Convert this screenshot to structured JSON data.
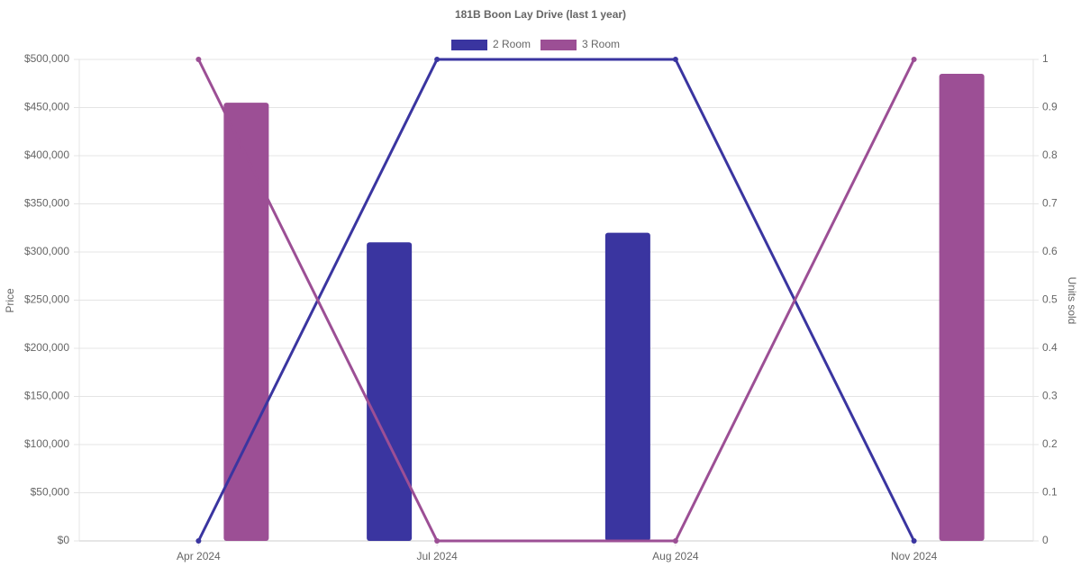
{
  "chart_data": {
    "type": "bar",
    "title": "181B Boon Lay Drive (last 1 year)",
    "categories": [
      "Apr 2024",
      "Jul 2024",
      "Aug 2024",
      "Nov 2024"
    ],
    "series": [
      {
        "name": "2 Room",
        "color": "#3a35a0",
        "values": [
          null,
          310000,
          320000,
          null
        ],
        "units_sold": [
          0,
          1,
          1,
          0
        ]
      },
      {
        "name": "3 Room",
        "color": "#9c4f95",
        "values": [
          455000,
          null,
          null,
          485000
        ],
        "units_sold": [
          1,
          0,
          0,
          1
        ]
      }
    ],
    "ylabel": "Price",
    "y2label": "Units sold",
    "ylim": [
      0,
      500000
    ],
    "yticks": [
      {
        "value": 0,
        "label": "$0"
      },
      {
        "value": 50000,
        "label": "$50,000"
      },
      {
        "value": 100000,
        "label": "$100,000"
      },
      {
        "value": 150000,
        "label": "$150,000"
      },
      {
        "value": 200000,
        "label": "$200,000"
      },
      {
        "value": 250000,
        "label": "$250,000"
      },
      {
        "value": 300000,
        "label": "$300,000"
      },
      {
        "value": 350000,
        "label": "$350,000"
      },
      {
        "value": 400000,
        "label": "$400,000"
      },
      {
        "value": 450000,
        "label": "$450,000"
      },
      {
        "value": 500000,
        "label": "$500,000"
      }
    ],
    "y2lim": [
      0,
      1
    ],
    "y2ticks": [
      0,
      0.1,
      0.2,
      0.3,
      0.4,
      0.5,
      0.6,
      0.7,
      0.8,
      0.9,
      1
    ],
    "grid": true,
    "legend": "top"
  }
}
